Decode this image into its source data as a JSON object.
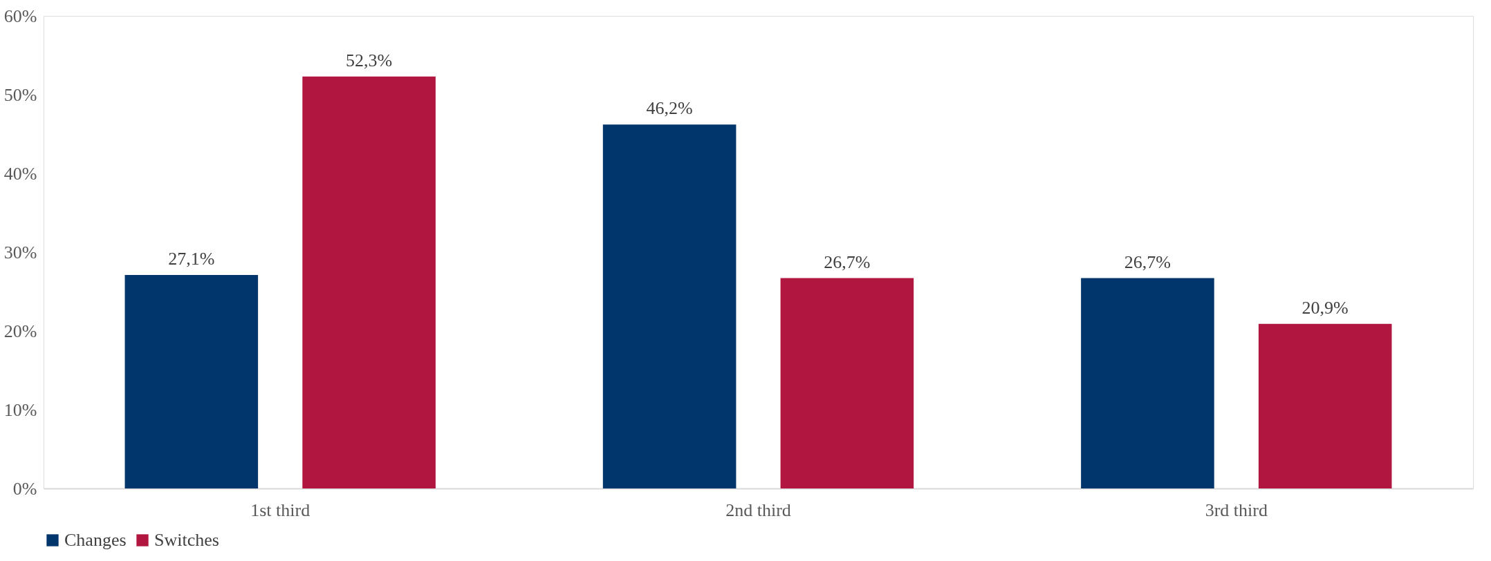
{
  "chart_data": {
    "type": "bar",
    "categories": [
      "1st third",
      "2nd third",
      "3rd third"
    ],
    "series": [
      {
        "name": "Changes",
        "color": "#00366b",
        "values": [
          27.1,
          46.2,
          26.7
        ],
        "value_labels": [
          "27,1%",
          "46,2%",
          "26,7%"
        ]
      },
      {
        "name": "Switches",
        "color": "#b0163f",
        "values": [
          52.3,
          26.7,
          20.9
        ],
        "value_labels": [
          "52,3%",
          "26,7%",
          "20,9%"
        ]
      }
    ],
    "ylim": [
      0,
      60
    ],
    "yticks": [
      {
        "value": 0,
        "label": "0%"
      },
      {
        "value": 10,
        "label": "10%"
      },
      {
        "value": 20,
        "label": "20%"
      },
      {
        "value": 30,
        "label": "30%"
      },
      {
        "value": 40,
        "label": "40%"
      },
      {
        "value": 50,
        "label": "50%"
      },
      {
        "value": 60,
        "label": "60%"
      }
    ],
    "grid": false,
    "legend": "bottom"
  }
}
